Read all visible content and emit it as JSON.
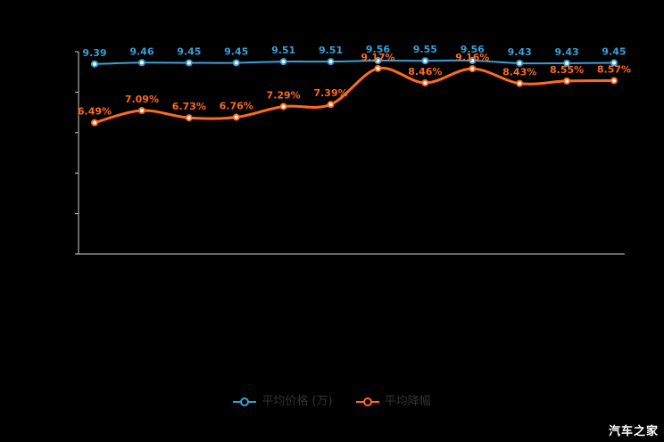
{
  "page": {
    "background": "#000000"
  },
  "watermark": {
    "text": "汽车之家"
  },
  "legend": {
    "items": [
      {
        "label": "平均价格 (万)",
        "color": "#38a0d8"
      },
      {
        "label": "平均降幅",
        "color": "#ff6a1e"
      }
    ]
  },
  "chart_data": {
    "type": "line",
    "title": "",
    "xlabel": "",
    "ylabel": "",
    "categories": [
      "",
      "",
      "",
      "",
      "",
      "",
      "",
      "",
      "",
      "",
      "",
      ""
    ],
    "series": [
      {
        "name": "平均价格 (万)",
        "color": "#38a0d8",
        "values": [
          9.39,
          9.46,
          9.45,
          9.45,
          9.51,
          9.51,
          9.56,
          9.55,
          9.56,
          9.43,
          9.43,
          9.45
        ],
        "labels": [
          "9.39",
          "9.46",
          "9.45",
          "9.45",
          "9.51",
          "9.51",
          "9.56",
          "9.55",
          "9.56",
          "9.43",
          "9.43",
          "9.45"
        ]
      },
      {
        "name": "平均降幅",
        "color": "#ff6a1e",
        "values": [
          6.49,
          7.09,
          6.73,
          6.76,
          7.29,
          7.39,
          9.17,
          8.46,
          9.16,
          8.43,
          8.55,
          8.57
        ],
        "labels": [
          "6.49%",
          "7.09%",
          "6.73%",
          "6.76%",
          "7.29%",
          "7.39%",
          "9.17%",
          "8.46%",
          "9.16%",
          "8.43%",
          "8.55%",
          "8.57%"
        ]
      }
    ],
    "ylim": [
      0,
      10
    ],
    "grid": false,
    "smooth": true,
    "legend_position": "bottom-center",
    "axis_color": "#cccccc"
  }
}
